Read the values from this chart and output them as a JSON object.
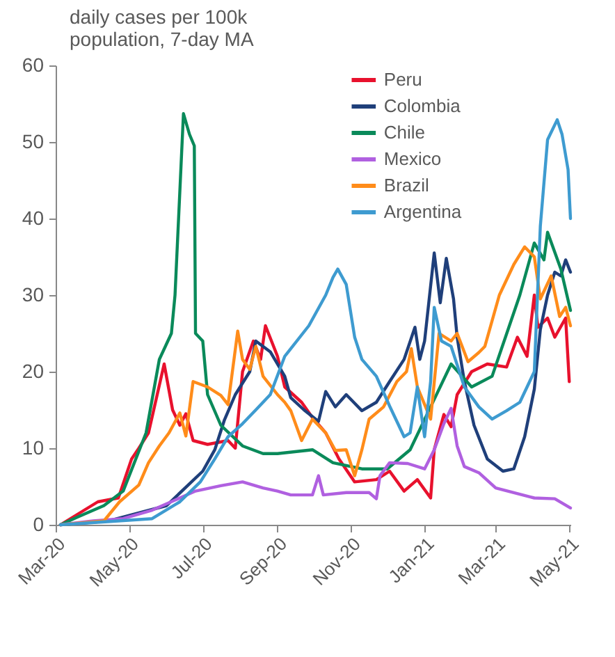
{
  "chart_data": {
    "type": "line",
    "title": "daily cases per 100k\npopulation, 7-day MA",
    "legend": "top right",
    "ylim": [
      0,
      60
    ],
    "yticks": [
      0,
      10,
      20,
      30,
      40,
      50,
      60
    ],
    "xlim": [
      "2020-03-01",
      "2021-05-02"
    ],
    "xticks": [
      {
        "value": "2020-03-01",
        "label": "Mar-20"
      },
      {
        "value": "2020-05-01",
        "label": "May-20"
      },
      {
        "value": "2020-07-01",
        "label": "Jul-20"
      },
      {
        "value": "2020-09-01",
        "label": "Sep-20"
      },
      {
        "value": "2020-11-01",
        "label": "Nov-20"
      },
      {
        "value": "2021-01-01",
        "label": "Jan-21"
      },
      {
        "value": "2021-03-01",
        "label": "Mar-21"
      },
      {
        "value": "2021-05-01",
        "label": "May-21"
      }
    ],
    "series": [
      {
        "name": "Peru",
        "color": "#e8112d",
        "x": [
          "2020-03-05",
          "2020-04-05",
          "2020-04-22",
          "2020-05-03",
          "2020-05-09",
          "2020-05-17",
          "2020-05-30",
          "2020-06-06",
          "2020-06-12",
          "2020-06-17",
          "2020-06-23",
          "2020-07-05",
          "2020-07-22",
          "2020-07-28",
          "2020-08-03",
          "2020-08-12",
          "2020-08-18",
          "2020-08-22",
          "2020-09-01",
          "2020-09-07",
          "2020-09-21",
          "2020-09-30",
          "2020-10-11",
          "2020-10-22",
          "2020-11-04",
          "2020-11-22",
          "2020-12-03",
          "2020-12-15",
          "2020-12-26",
          "2021-01-06",
          "2021-01-09",
          "2021-01-17",
          "2021-01-23",
          "2021-01-28",
          "2021-02-09",
          "2021-02-22",
          "2021-03-10",
          "2021-03-19",
          "2021-03-27",
          "2021-04-02",
          "2021-04-05",
          "2021-04-13",
          "2021-04-19",
          "2021-04-28",
          "2021-05-01"
        ],
        "values": [
          0,
          3,
          3.5,
          8.6,
          10,
          12,
          21,
          15,
          13,
          14.5,
          11,
          10.5,
          11,
          10,
          20,
          24,
          21.6,
          26,
          22,
          18,
          16,
          14,
          12,
          8.6,
          5.6,
          5.9,
          7,
          4.4,
          5.9,
          3.5,
          9.8,
          14.4,
          12.8,
          17,
          20,
          21,
          20.6,
          24.5,
          22,
          30,
          25.8,
          27,
          24.5,
          27,
          18.7
        ]
      },
      {
        "name": "Colombia",
        "color": "#1f3f7a",
        "x": [
          "2020-03-05",
          "2020-04-14",
          "2020-06-01",
          "2020-07-01",
          "2020-07-11",
          "2020-07-19",
          "2020-07-28",
          "2020-08-09",
          "2020-08-14",
          "2020-08-20",
          "2020-08-26",
          "2020-09-07",
          "2020-09-12",
          "2020-09-23",
          "2020-10-05",
          "2020-10-11",
          "2020-10-19",
          "2020-10-28",
          "2020-11-10",
          "2020-11-22",
          "2020-12-03",
          "2020-12-15",
          "2020-12-24",
          "2020-12-28",
          "2021-01-01",
          "2021-01-09",
          "2021-01-14",
          "2021-01-19",
          "2021-01-25",
          "2021-01-28",
          "2021-02-03",
          "2021-02-11",
          "2021-02-22",
          "2021-03-07",
          "2021-03-16",
          "2021-03-25",
          "2021-04-02",
          "2021-04-07",
          "2021-04-13",
          "2021-04-19",
          "2021-04-24",
          "2021-04-28",
          "2021-05-02"
        ],
        "values": [
          0,
          0.5,
          2.5,
          7,
          9.8,
          13.7,
          17,
          20,
          24,
          23.3,
          22.6,
          19.4,
          16.6,
          15,
          13.5,
          17.4,
          15.4,
          17,
          14.9,
          16,
          18.7,
          21.6,
          25.8,
          21.6,
          24,
          35.5,
          29,
          34.8,
          29.5,
          24.5,
          18.7,
          13,
          8.6,
          7,
          7.3,
          11.5,
          17.7,
          25.5,
          30,
          33,
          32.5,
          34.6,
          33
        ]
      },
      {
        "name": "Chile",
        "color": "#0a8a5a",
        "x": [
          "2020-03-05",
          "2020-03-19",
          "2020-04-10",
          "2020-04-26",
          "2020-05-15",
          "2020-05-26",
          "2020-06-05",
          "2020-06-08",
          "2020-06-15",
          "2020-06-20",
          "2020-06-24",
          "2020-06-25",
          "2020-07-01",
          "2020-07-05",
          "2020-07-16",
          "2020-08-03",
          "2020-08-20",
          "2020-09-01",
          "2020-09-30",
          "2020-10-17",
          "2020-11-10",
          "2020-12-01",
          "2020-12-20",
          "2021-01-06",
          "2021-01-23",
          "2021-02-09",
          "2021-02-26",
          "2021-03-21",
          "2021-04-02",
          "2021-04-10",
          "2021-04-13",
          "2021-04-24",
          "2021-05-02"
        ],
        "values": [
          0,
          1,
          2.5,
          4.4,
          12,
          21.6,
          25,
          30,
          53.7,
          51,
          49.5,
          25,
          24,
          17,
          13,
          10.3,
          9.3,
          9.3,
          9.8,
          8.1,
          7.3,
          7.3,
          9.8,
          15.4,
          21,
          18,
          19.4,
          30,
          36.8,
          34.6,
          38.2,
          33.4,
          28
        ]
      },
      {
        "name": "Mexico",
        "color": "#b060e0",
        "x": [
          "2020-03-05",
          "2020-04-01",
          "2020-04-26",
          "2020-05-20",
          "2020-06-12",
          "2020-06-25",
          "2020-07-16",
          "2020-08-03",
          "2020-08-20",
          "2020-09-01",
          "2020-09-12",
          "2020-09-30",
          "2020-10-05",
          "2020-10-09",
          "2020-10-28",
          "2020-11-16",
          "2020-11-22",
          "2020-11-25",
          "2020-12-03",
          "2020-12-18",
          "2021-01-01",
          "2021-01-09",
          "2021-01-17",
          "2021-01-23",
          "2021-01-28",
          "2021-02-03",
          "2021-02-15",
          "2021-03-01",
          "2021-03-16",
          "2021-04-02",
          "2021-04-19",
          "2021-05-02"
        ],
        "values": [
          0,
          0.5,
          0.8,
          1.9,
          3.5,
          4.4,
          5.1,
          5.6,
          4.8,
          4.4,
          3.9,
          3.9,
          6.4,
          3.9,
          4.2,
          4.2,
          3.4,
          6.4,
          8.1,
          8,
          7.3,
          9.8,
          13.2,
          15.2,
          10.3,
          7.6,
          6.8,
          4.8,
          4.2,
          3.5,
          3.4,
          2.2
        ]
      },
      {
        "name": "Brazil",
        "color": "#ff8c1a",
        "x": [
          "2020-03-05",
          "2020-04-10",
          "2020-04-23",
          "2020-05-09",
          "2020-05-17",
          "2020-05-26",
          "2020-06-03",
          "2020-06-12",
          "2020-06-17",
          "2020-06-23",
          "2020-07-05",
          "2020-07-16",
          "2020-07-22",
          "2020-07-30",
          "2020-08-03",
          "2020-08-09",
          "2020-08-14",
          "2020-08-20",
          "2020-09-01",
          "2020-09-07",
          "2020-09-12",
          "2020-09-21",
          "2020-09-30",
          "2020-10-11",
          "2020-10-19",
          "2020-10-28",
          "2020-11-04",
          "2020-11-10",
          "2020-11-16",
          "2020-11-28",
          "2020-12-09",
          "2020-12-17",
          "2020-12-21",
          "2020-12-26",
          "2021-01-06",
          "2021-01-13",
          "2021-01-23",
          "2021-01-28",
          "2021-02-06",
          "2021-02-15",
          "2021-02-20",
          "2021-03-04",
          "2021-03-16",
          "2021-03-25",
          "2021-04-02",
          "2021-04-07",
          "2021-04-16",
          "2021-04-23",
          "2021-04-28",
          "2021-05-02"
        ],
        "values": [
          0,
          0.5,
          3,
          5.2,
          8.1,
          10.3,
          12,
          14.6,
          11.6,
          18.7,
          18,
          16.9,
          15.7,
          25.3,
          21.6,
          20.3,
          23.3,
          19.4,
          17,
          16,
          14.9,
          11,
          13.8,
          12,
          9.7,
          9.8,
          6.4,
          9.8,
          13.8,
          15.4,
          18.7,
          20,
          23,
          18,
          13.8,
          25,
          24,
          25,
          21.3,
          22.5,
          23.3,
          30,
          34,
          36.3,
          35,
          29.5,
          32.5,
          27.2,
          28.4,
          26
        ]
      },
      {
        "name": "Argentina",
        "color": "#3e9bd0",
        "x": [
          "2020-03-05",
          "2020-05-20",
          "2020-06-12",
          "2020-06-29",
          "2020-07-11",
          "2020-07-22",
          "2020-08-03",
          "2020-08-14",
          "2020-08-26",
          "2020-09-07",
          "2020-09-27",
          "2020-10-11",
          "2020-10-17",
          "2020-10-21",
          "2020-10-28",
          "2020-11-04",
          "2020-11-10",
          "2020-11-22",
          "2020-12-03",
          "2020-12-15",
          "2020-12-20",
          "2020-12-26",
          "2021-01-01",
          "2021-01-06",
          "2021-01-09",
          "2021-01-15",
          "2021-01-23",
          "2021-02-03",
          "2021-02-15",
          "2021-02-26",
          "2021-03-10",
          "2021-03-21",
          "2021-04-02",
          "2021-04-07",
          "2021-04-13",
          "2021-04-21",
          "2021-04-25",
          "2021-04-30",
          "2021-05-02"
        ],
        "values": [
          0,
          0.8,
          3,
          5.6,
          8.6,
          11.5,
          13.2,
          15,
          17,
          22,
          26,
          30,
          32.3,
          33.4,
          31.4,
          24.5,
          21.6,
          19.4,
          15.5,
          11.5,
          12,
          18,
          11.5,
          18.7,
          28.4,
          24,
          23.3,
          18,
          15.4,
          13.8,
          14.9,
          16,
          20,
          39,
          50.3,
          52.9,
          51,
          46.4,
          40
        ]
      }
    ]
  }
}
